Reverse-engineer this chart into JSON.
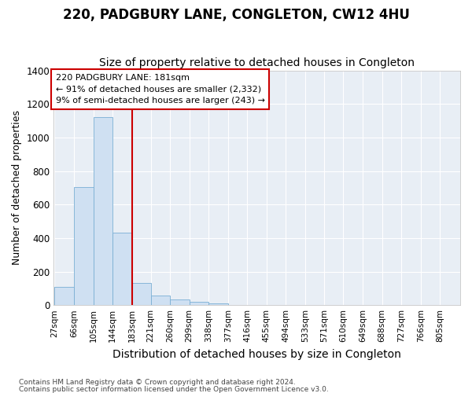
{
  "title": "220, PADGBURY LANE, CONGLETON, CW12 4HU",
  "subtitle": "Size of property relative to detached houses in Congleton",
  "xlabel": "Distribution of detached houses by size in Congleton",
  "ylabel": "Number of detached properties",
  "footnote1": "Contains HM Land Registry data © Crown copyright and database right 2024.",
  "footnote2": "Contains public sector information licensed under the Open Government Licence v3.0.",
  "bar_edges": [
    27,
    66,
    105,
    144,
    183,
    221,
    260,
    299,
    338,
    377,
    416,
    455,
    494,
    533,
    571,
    610,
    649,
    688,
    727,
    766,
    805
  ],
  "bar_heights": [
    110,
    705,
    1120,
    430,
    130,
    55,
    35,
    20,
    10,
    0,
    0,
    0,
    0,
    0,
    0,
    0,
    0,
    0,
    0,
    0,
    0
  ],
  "bar_color": "#cfe0f2",
  "bar_edge_color": "#7aafd4",
  "vline_x": 183,
  "vline_color": "#cc0000",
  "ylim": [
    0,
    1400
  ],
  "yticks": [
    0,
    200,
    400,
    600,
    800,
    1000,
    1200,
    1400
  ],
  "annotation_line1": "220 PADGBURY LANE: 181sqm",
  "annotation_line2": "← 91% of detached houses are smaller (2,332)",
  "annotation_line3": "9% of semi-detached houses are larger (243) →",
  "bg_color": "#ffffff",
  "plot_bg_color": "#e8eef5",
  "grid_color": "#ffffff",
  "title_fontsize": 12,
  "subtitle_fontsize": 10,
  "ylabel_fontsize": 9,
  "xlabel_fontsize": 10
}
